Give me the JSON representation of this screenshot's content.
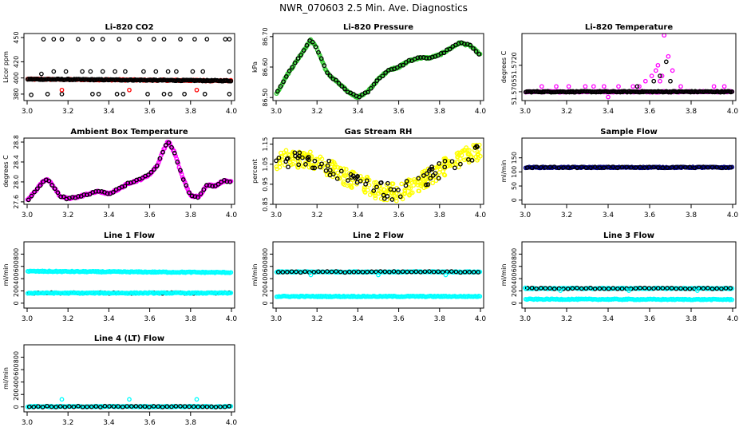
{
  "figure": {
    "title": "NWR_070603  2.5 Min. Ave. Diagnostics"
  },
  "chart_data": [
    {
      "type": "scatter",
      "title": "Li-820 CO2",
      "ylabel": "Licor ppm",
      "xlim": [
        3.0,
        4.0
      ],
      "ylim": [
        372,
        455
      ],
      "yticks": [
        380,
        400,
        420,
        450
      ],
      "ytick_labels": [
        "380",
        "400",
        "420",
        "450"
      ],
      "xticks": [
        3.0,
        3.2,
        3.4,
        3.6,
        3.8,
        4.0
      ],
      "xtick_labels": [
        "3.0",
        "3.2",
        "3.4",
        "3.6",
        "3.8",
        "4.0"
      ],
      "series": [
        {
          "color": "#ff0000",
          "kind": "band",
          "y_start": 398.5,
          "y_end": 396.5,
          "note": "dense"
        },
        {
          "color": "#000000",
          "kind": "band",
          "y_start": 398.5,
          "y_end": 396.5
        },
        {
          "color": "#000000",
          "kind": "points",
          "x": [
            3.08,
            3.13,
            3.17,
            3.25,
            3.32,
            3.37,
            3.45,
            3.55,
            3.62,
            3.67,
            3.75,
            3.82,
            3.88,
            3.97,
            3.99
          ],
          "y": [
            448,
            448,
            448,
            448,
            448,
            448,
            448,
            448,
            448,
            448,
            448,
            448,
            448,
            448,
            448
          ]
        },
        {
          "color": "#000000",
          "kind": "points",
          "x": [
            3.07,
            3.13,
            3.19,
            3.27,
            3.31,
            3.37,
            3.43,
            3.48,
            3.57,
            3.63,
            3.69,
            3.73,
            3.81,
            3.86,
            3.99
          ],
          "y": [
            405,
            408,
            408,
            408,
            408,
            408,
            408,
            408,
            408,
            408,
            408,
            408,
            408,
            408,
            408
          ]
        },
        {
          "color": "#000000",
          "kind": "points",
          "x": [
            3.02,
            3.1,
            3.17,
            3.32,
            3.35,
            3.44,
            3.47,
            3.59,
            3.67,
            3.7,
            3.77,
            3.87,
            3.99
          ],
          "y": [
            379,
            380,
            380,
            380,
            380,
            380,
            380,
            380,
            380,
            380,
            380,
            380,
            380
          ]
        },
        {
          "color": "#ff0000",
          "kind": "points",
          "x": [
            3.17,
            3.5,
            3.83
          ],
          "y": [
            385,
            385,
            385
          ]
        }
      ]
    },
    {
      "type": "scatter",
      "title": "Li-820 Pressure",
      "ylabel": "kPa",
      "xlim": [
        3.0,
        4.0
      ],
      "ylim": [
        86.49,
        86.71
      ],
      "yticks": [
        86.5,
        86.6,
        86.7
      ],
      "ytick_labels": [
        "86.50",
        "86.60",
        "86.70"
      ],
      "xticks": [
        3.0,
        3.2,
        3.4,
        3.6,
        3.8,
        4.0
      ],
      "xtick_labels": [
        "3.0",
        "3.2",
        "3.4",
        "3.6",
        "3.8",
        "4.0"
      ],
      "series": [
        {
          "color": "#33cc33",
          "kind": "curve",
          "x": [
            3.0,
            3.05,
            3.1,
            3.15,
            3.17,
            3.2,
            3.25,
            3.3,
            3.35,
            3.4,
            3.45,
            3.5,
            3.55,
            3.6,
            3.65,
            3.7,
            3.75,
            3.8,
            3.85,
            3.9,
            3.95,
            4.0
          ],
          "y": [
            86.51,
            86.57,
            86.62,
            86.67,
            86.69,
            86.66,
            86.58,
            86.55,
            86.52,
            86.5,
            86.52,
            86.56,
            86.59,
            86.6,
            86.62,
            86.63,
            86.63,
            86.64,
            86.66,
            86.68,
            86.67,
            86.64
          ]
        },
        {
          "color": "#000000",
          "kind": "curve_sparse",
          "x": [
            3.0,
            3.05,
            3.1,
            3.15,
            3.17,
            3.2,
            3.25,
            3.3,
            3.35,
            3.4,
            3.45,
            3.5,
            3.55,
            3.6,
            3.65,
            3.7,
            3.75,
            3.8,
            3.85,
            3.9,
            3.95,
            4.0
          ],
          "y": [
            86.51,
            86.57,
            86.62,
            86.67,
            86.69,
            86.66,
            86.58,
            86.55,
            86.52,
            86.5,
            86.52,
            86.56,
            86.59,
            86.6,
            86.62,
            86.63,
            86.63,
            86.64,
            86.66,
            86.68,
            86.67,
            86.64
          ]
        }
      ]
    },
    {
      "type": "scatter",
      "title": "Li-820 Temperature",
      "ylabel": "degrees C",
      "xlim": [
        3.0,
        4.0
      ],
      "ylim": [
        51.57,
        51.5738
      ],
      "yticks": [
        51.5705,
        51.572
      ],
      "ytick_labels": [
        "51.5705",
        "51.5720"
      ],
      "xticks": [
        3.0,
        3.2,
        3.4,
        3.6,
        3.8,
        4.0
      ],
      "xtick_labels": [
        "3.0",
        "3.2",
        "3.4",
        "3.6",
        "3.8",
        "4.0"
      ],
      "series": [
        {
          "color": "#ff00ff",
          "kind": "band",
          "y_start": 51.5705,
          "y_end": 51.5705
        },
        {
          "color": "#000000",
          "kind": "band",
          "y_start": 51.5705,
          "y_end": 51.5705
        },
        {
          "color": "#ff00ff",
          "kind": "points",
          "x": [
            3.08,
            3.15,
            3.21,
            3.29,
            3.33,
            3.38,
            3.45,
            3.52,
            3.55,
            3.58,
            3.61,
            3.63,
            3.64,
            3.65,
            3.66,
            3.67,
            3.69,
            3.71,
            3.75,
            3.91,
            3.96
          ],
          "y": [
            51.5708,
            51.5708,
            51.5708,
            51.5708,
            51.5708,
            51.5708,
            51.5708,
            51.5708,
            51.5708,
            51.5711,
            51.5714,
            51.5717,
            51.572,
            51.5711,
            51.5714,
            51.5737,
            51.5725,
            51.5717,
            51.5708,
            51.5708,
            51.5708
          ]
        },
        {
          "color": "#ff00ff",
          "kind": "points",
          "x": [
            3.05,
            3.16,
            3.19,
            3.4
          ],
          "y": [
            51.5699,
            51.5699,
            51.5699,
            51.5702
          ]
        },
        {
          "color": "#000000",
          "kind": "points",
          "x": [
            3.54,
            3.62,
            3.65,
            3.68,
            3.7
          ],
          "y": [
            51.5708,
            51.5711,
            51.5714,
            51.5722,
            51.5711
          ]
        }
      ]
    },
    {
      "type": "scatter",
      "title": "Ambient Box Temperature",
      "ylabel": "degrees C",
      "xlim": [
        3.0,
        4.0
      ],
      "ylim": [
        27.55,
        28.88
      ],
      "yticks": [
        27.6,
        28.0,
        28.4,
        28.8
      ],
      "ytick_labels": [
        "27.6",
        "28.0",
        "28.4",
        "28.8"
      ],
      "xticks": [
        3.0,
        3.2,
        3.4,
        3.6,
        3.8,
        4.0
      ],
      "xtick_labels": [
        "3.0",
        "3.2",
        "3.4",
        "3.6",
        "3.8",
        "4.0"
      ],
      "series": [
        {
          "color": "#ff00ff",
          "kind": "curve",
          "x": [
            3.0,
            3.04,
            3.08,
            3.1,
            3.13,
            3.16,
            3.2,
            3.25,
            3.3,
            3.35,
            3.4,
            3.45,
            3.5,
            3.55,
            3.6,
            3.64,
            3.67,
            3.69,
            3.72,
            3.76,
            3.8,
            3.84,
            3.88,
            3.92,
            3.96,
            4.0
          ],
          "y": [
            27.62,
            27.82,
            28.02,
            28.06,
            27.9,
            27.72,
            27.66,
            27.7,
            27.76,
            27.81,
            27.76,
            27.86,
            27.98,
            28.04,
            28.15,
            28.35,
            28.67,
            28.82,
            28.6,
            28.1,
            27.72,
            27.7,
            27.94,
            27.92,
            28.02,
            28.01
          ]
        },
        {
          "color": "#000000",
          "kind": "curve_sparse",
          "x": [
            3.0,
            3.04,
            3.08,
            3.1,
            3.13,
            3.16,
            3.2,
            3.25,
            3.3,
            3.35,
            3.4,
            3.45,
            3.5,
            3.55,
            3.6,
            3.64,
            3.67,
            3.69,
            3.72,
            3.76,
            3.8,
            3.84,
            3.88,
            3.92,
            3.96,
            4.0
          ],
          "y": [
            27.62,
            27.82,
            28.02,
            28.06,
            27.9,
            27.72,
            27.66,
            27.7,
            27.76,
            27.81,
            27.76,
            27.86,
            27.98,
            28.04,
            28.15,
            28.35,
            28.67,
            28.82,
            28.6,
            28.1,
            27.72,
            27.7,
            27.94,
            27.92,
            28.02,
            28.01
          ]
        }
      ]
    },
    {
      "type": "scatter",
      "title": "Gas Stream RH",
      "ylabel": "percent",
      "xlim": [
        3.0,
        4.0
      ],
      "ylim": [
        0.85,
        1.18
      ],
      "yticks": [
        0.85,
        0.95,
        1.05,
        1.15
      ],
      "ytick_labels": [
        "0.85",
        "0.95",
        "1.05",
        "1.15"
      ],
      "xticks": [
        3.0,
        3.2,
        3.4,
        3.6,
        3.8,
        4.0
      ],
      "xtick_labels": [
        "3.0",
        "3.2",
        "3.4",
        "3.6",
        "3.8",
        "4.0"
      ],
      "series": [
        {
          "color": "#ffff00",
          "kind": "noisy",
          "x": [
            3.0,
            3.1,
            3.2,
            3.3,
            3.4,
            3.5,
            3.6,
            3.7,
            3.8,
            3.9,
            4.0
          ],
          "y": [
            1.07,
            1.08,
            1.06,
            1.01,
            0.96,
            0.92,
            0.91,
            0.96,
            1.02,
            1.08,
            1.12
          ],
          "spread": 0.045
        },
        {
          "color": "#000000",
          "kind": "noisy_sparse",
          "x": [
            3.0,
            3.1,
            3.2,
            3.3,
            3.4,
            3.5,
            3.6,
            3.7,
            3.8,
            3.9,
            4.0
          ],
          "y": [
            1.07,
            1.08,
            1.06,
            1.01,
            0.96,
            0.92,
            0.91,
            0.96,
            1.02,
            1.08,
            1.12
          ],
          "spread": 0.04
        }
      ]
    },
    {
      "type": "scatter",
      "title": "Sample Flow",
      "ylabel": "ml/min",
      "xlim": [
        3.0,
        4.0
      ],
      "ylim": [
        -15,
        220
      ],
      "yticks": [
        0,
        50,
        100,
        150
      ],
      "ytick_labels": [
        "0",
        "50",
        "100",
        "150"
      ],
      "xticks": [
        3.0,
        3.2,
        3.4,
        3.6,
        3.8,
        4.0
      ],
      "xtick_labels": [
        "3.0",
        "3.2",
        "3.4",
        "3.6",
        "3.8",
        "4.0"
      ],
      "series": [
        {
          "color": "#000080",
          "kind": "band",
          "y_start": 116,
          "y_end": 116
        },
        {
          "color": "#000000",
          "kind": "band_sparse",
          "y_start": 116,
          "y_end": 116
        }
      ]
    },
    {
      "type": "scatter",
      "title": "Line 1 Flow",
      "ylabel": "ml/min",
      "xlim": [
        3.0,
        4.0
      ],
      "ylim": [
        -80,
        1000
      ],
      "yticks": [
        0,
        200,
        400,
        600,
        800
      ],
      "ytick_labels": [
        "0",
        "200",
        "400",
        "600",
        "800"
      ],
      "xticks": [
        3.0,
        3.2,
        3.4,
        3.6,
        3.8,
        4.0
      ],
      "xtick_labels": [
        "3.0",
        "3.2",
        "3.4",
        "3.6",
        "3.8",
        "4.0"
      ],
      "series": [
        {
          "color": "#00ffff",
          "kind": "band",
          "y_start": 520,
          "y_end": 500
        },
        {
          "color": "#000000",
          "kind": "band_sparse",
          "y_start": 165,
          "y_end": 165
        },
        {
          "color": "#00ffff",
          "kind": "band",
          "y_start": 165,
          "y_end": 165
        }
      ]
    },
    {
      "type": "scatter",
      "title": "Line 2 Flow",
      "ylabel": "ml/min",
      "xlim": [
        3.0,
        4.0
      ],
      "ylim": [
        -80,
        1000
      ],
      "yticks": [
        0,
        200,
        400,
        600,
        800
      ],
      "ytick_labels": [
        "0",
        "200",
        "400",
        "600",
        "800"
      ],
      "xticks": [
        3.0,
        3.2,
        3.4,
        3.6,
        3.8,
        4.0
      ],
      "xtick_labels": [
        "3.0",
        "3.2",
        "3.4",
        "3.6",
        "3.8",
        "4.0"
      ],
      "series": [
        {
          "color": "#00ffff",
          "kind": "band",
          "y_start": 510,
          "y_end": 510
        },
        {
          "color": "#000000",
          "kind": "band_sparse",
          "y_start": 510,
          "y_end": 510
        },
        {
          "color": "#00ffff",
          "kind": "band",
          "y_start": 110,
          "y_end": 110
        },
        {
          "color": "#00ffff",
          "kind": "points",
          "x": [
            3.17,
            3.5,
            3.83
          ],
          "y": [
            460,
            460,
            460
          ]
        }
      ]
    },
    {
      "type": "scatter",
      "title": "Line 3 Flow",
      "ylabel": "ml/min",
      "xlim": [
        3.0,
        4.0
      ],
      "ylim": [
        -80,
        1000
      ],
      "yticks": [
        0,
        200,
        400,
        600,
        800
      ],
      "ytick_labels": [
        "0",
        "200",
        "400",
        "600",
        "800"
      ],
      "xticks": [
        3.0,
        3.2,
        3.4,
        3.6,
        3.8,
        4.0
      ],
      "xtick_labels": [
        "3.0",
        "3.2",
        "3.4",
        "3.6",
        "3.8",
        "4.0"
      ],
      "series": [
        {
          "color": "#00ffff",
          "kind": "band",
          "y_start": 240,
          "y_end": 240
        },
        {
          "color": "#000000",
          "kind": "band_sparse",
          "y_start": 240,
          "y_end": 240
        },
        {
          "color": "#00ffff",
          "kind": "band",
          "y_start": 65,
          "y_end": 60
        },
        {
          "color": "#00ffff",
          "kind": "points",
          "x": [
            3.0,
            3.17,
            3.5,
            3.83
          ],
          "y": [
            250,
            205,
            205,
            205
          ]
        }
      ]
    },
    {
      "type": "scatter",
      "title": "Line 4 (LT) Flow",
      "ylabel": "ml/min",
      "xlim": [
        3.0,
        4.0
      ],
      "ylim": [
        -80,
        1000
      ],
      "yticks": [
        0,
        200,
        400,
        600,
        800
      ],
      "ytick_labels": [
        "0",
        "200",
        "400",
        "600",
        "800"
      ],
      "xticks": [
        3.0,
        3.2,
        3.4,
        3.6,
        3.8,
        4.0
      ],
      "xtick_labels": [
        "3.0",
        "3.2",
        "3.4",
        "3.6",
        "3.8",
        "4.0"
      ],
      "series": [
        {
          "color": "#00ffff",
          "kind": "band",
          "y_start": 5,
          "y_end": 5
        },
        {
          "color": "#000000",
          "kind": "band_sparse",
          "y_start": 5,
          "y_end": 5
        },
        {
          "color": "#00ffff",
          "kind": "points",
          "x": [
            3.17,
            3.5,
            3.83
          ],
          "y": [
            120,
            120,
            120
          ]
        }
      ]
    }
  ]
}
